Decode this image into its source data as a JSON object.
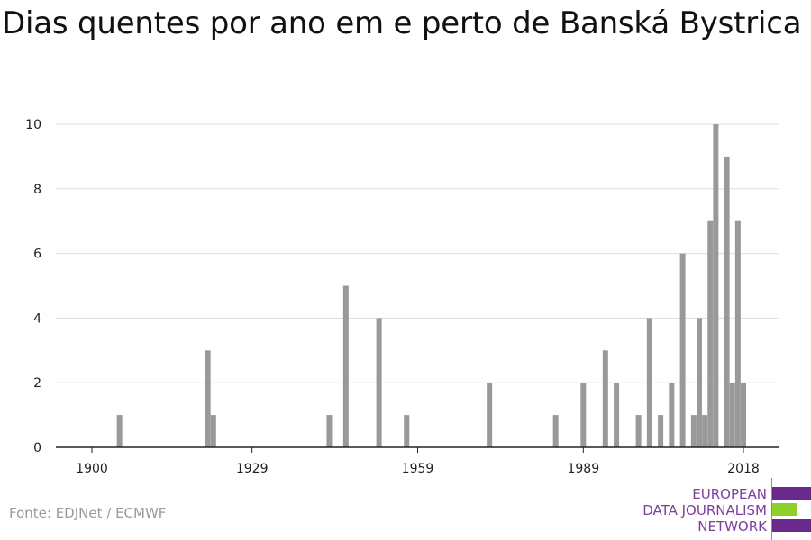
{
  "title": "Dias quentes por ano em e perto de Banská Bystrica",
  "source": "Fonte: EDJNet / ECMWF",
  "logo": {
    "lines": [
      "EUROPEAN",
      "DATA JOURNALISM",
      "NETWORK"
    ],
    "colors": {
      "purple": "#6a2a8c",
      "green": "#8ed12a",
      "text": "#7b3f9e"
    }
  },
  "colors": {
    "bar": "#999999",
    "grid": "#dddddd",
    "axis": "#222222"
  },
  "chart_data": {
    "type": "bar",
    "title": "Dias quentes por ano em e perto de Banská Bystrica",
    "xlabel": "",
    "ylabel": "",
    "xlim": [
      1900,
      2018
    ],
    "ylim": [
      0,
      10
    ],
    "x_ticks": [
      "1900",
      "1929",
      "1959",
      "1989",
      "2018"
    ],
    "y_ticks": [
      "0",
      "2",
      "4",
      "6",
      "8",
      "10"
    ],
    "grid": true,
    "x": [
      1905,
      1921,
      1922,
      1943,
      1946,
      1952,
      1957,
      1972,
      1984,
      1989,
      1993,
      1995,
      1999,
      2001,
      2003,
      2005,
      2007,
      2009,
      2010,
      2011,
      2012,
      2013,
      2015,
      2016,
      2017,
      2018
    ],
    "values": [
      1,
      3,
      1,
      1,
      5,
      4,
      1,
      2,
      1,
      2,
      3,
      2,
      1,
      4,
      1,
      2,
      6,
      1,
      4,
      1,
      7,
      10,
      9,
      2,
      7,
      2
    ]
  }
}
